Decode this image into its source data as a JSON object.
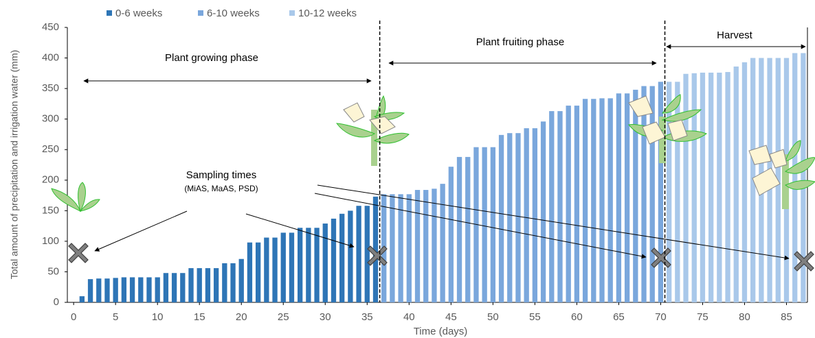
{
  "chart_data": {
    "type": "bar",
    "x_label": "Time (days)",
    "y_label": "Total amount of precipitation and irrigation water (mm)",
    "annotations": [
      "Plant growing phase",
      "Plant fruiting phase",
      "Harvest",
      "Sampling times",
      "(MiAS, MaAS, PSD)"
    ],
    "series": [
      {
        "name": "0-6 weeks",
        "color": "#2e75b6",
        "x": [
          1,
          2,
          3,
          4,
          5,
          6,
          7,
          8,
          9,
          10,
          11,
          12,
          13,
          14,
          15,
          16,
          17,
          18,
          19,
          20,
          21,
          22,
          23,
          24,
          25,
          26,
          27,
          28,
          29,
          30,
          31,
          32,
          33,
          34,
          35,
          36
        ],
        "values": [
          10,
          38,
          39,
          39,
          40,
          41,
          41,
          41,
          41,
          41,
          48,
          48,
          48,
          56,
          56,
          56,
          56,
          64,
          64,
          71,
          98,
          98,
          106,
          106,
          114,
          114,
          122,
          122,
          122,
          129,
          137,
          145,
          150,
          158,
          158,
          173
        ]
      },
      {
        "name": "6-10 weeks",
        "color": "#7aa7dc",
        "x": [
          37,
          38,
          39,
          40,
          41,
          42,
          43,
          44,
          45,
          46,
          47,
          48,
          49,
          50,
          51,
          52,
          53,
          54,
          55,
          56,
          57,
          58,
          59,
          60,
          61,
          62,
          63,
          64,
          65,
          66,
          67,
          68,
          69,
          70
        ],
        "values": [
          177,
          177,
          177,
          177,
          184,
          184,
          186,
          194,
          222,
          238,
          238,
          254,
          254,
          254,
          274,
          277,
          277,
          285,
          285,
          296,
          313,
          313,
          322,
          322,
          333,
          333,
          334,
          334,
          342,
          342,
          348,
          354,
          354,
          361
        ]
      },
      {
        "name": "10-12 weeks",
        "color": "#a9c8ea",
        "x": [
          71,
          72,
          73,
          74,
          75,
          76,
          77,
          78,
          79,
          80,
          81,
          82,
          83,
          84,
          85,
          86,
          87
        ],
        "values": [
          361,
          361,
          374,
          375,
          376,
          376,
          376,
          377,
          386,
          393,
          400,
          400,
          400,
          400,
          400,
          408,
          408
        ]
      }
    ],
    "xlim": [
      -0.75,
      87.5
    ],
    "xticks": [
      0,
      5,
      10,
      15,
      20,
      25,
      30,
      35,
      40,
      45,
      50,
      55,
      60,
      65,
      70,
      75,
      80,
      85
    ],
    "ylim": [
      0,
      450
    ],
    "yticks": [
      0,
      50,
      100,
      150,
      200,
      250,
      300,
      350,
      400,
      450
    ],
    "grid": false,
    "legend": "top"
  }
}
